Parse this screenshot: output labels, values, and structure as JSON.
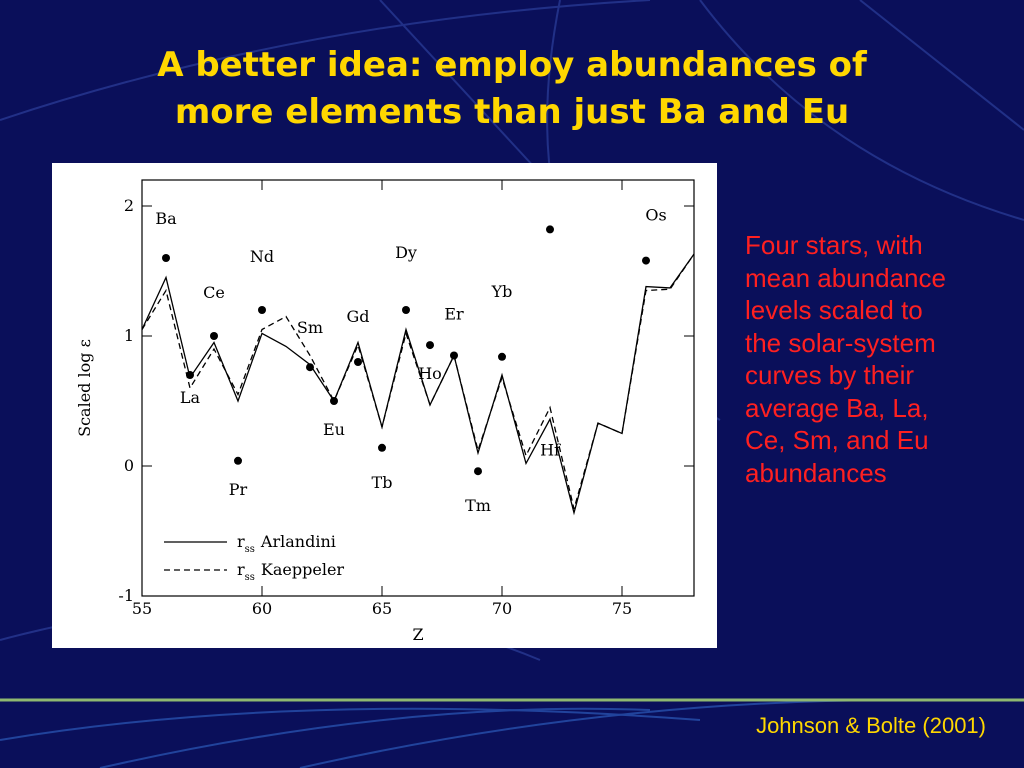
{
  "title": [
    "A better idea: employ abundances of",
    "more elements than just Ba and Eu"
  ],
  "body": [
    "Four stars, with",
    "mean abundance",
    "levels scaled to",
    "the solar-system",
    "curves by their",
    "average Ba, La,",
    "Ce, Sm, and Eu",
    "abundances"
  ],
  "footer": "Johnson & Bolte (2001)",
  "chart_data": {
    "type": "line",
    "x_label": "Z",
    "y_label": "Scaled log ε",
    "xlim": [
      55,
      78
    ],
    "ylim": [
      -1,
      2.2
    ],
    "xticks": [
      55,
      60,
      65,
      70,
      75
    ],
    "yticks": [
      -1,
      0,
      1,
      2
    ],
    "legend_prefix": "r",
    "legend_subscript": "ss",
    "x": [
      55,
      56,
      57,
      58,
      59,
      60,
      61,
      62,
      63,
      64,
      65,
      66,
      67,
      68,
      69,
      70,
      71,
      72,
      73,
      74,
      75,
      76,
      77,
      78
    ],
    "series": [
      {
        "name": "Arlandini",
        "color": "#000000",
        "dash": false,
        "values": [
          1.05,
          1.45,
          0.68,
          0.95,
          0.5,
          1.02,
          0.92,
          0.78,
          0.5,
          0.95,
          0.3,
          1.05,
          0.47,
          0.85,
          0.1,
          0.7,
          0.02,
          0.36,
          -0.36,
          0.33,
          0.25,
          1.38,
          1.37,
          1.63
        ]
      },
      {
        "name": "Kaeppeler",
        "color": "#000000",
        "dash": true,
        "values": [
          1.05,
          1.35,
          0.6,
          0.9,
          0.55,
          1.05,
          1.15,
          0.85,
          0.5,
          0.93,
          0.3,
          1.02,
          0.47,
          0.85,
          0.12,
          0.68,
          0.08,
          0.45,
          -0.33,
          0.33,
          0.25,
          1.35,
          1.36,
          1.63
        ]
      }
    ],
    "stars_mean": {
      "x": [
        56,
        57,
        58,
        59,
        60,
        62,
        63,
        64,
        65,
        66,
        67,
        68,
        69,
        70,
        72,
        76
      ],
      "labels": [
        "Ba",
        "La",
        "Ce",
        "Pr",
        "Nd",
        "Sm",
        "Eu",
        "Gd",
        "Tb",
        "Dy",
        "Ho",
        "Er",
        "Tm",
        "Yb",
        "Hf",
        "Os"
      ],
      "values": [
        1.6,
        0.7,
        1.0,
        0.04,
        1.2,
        0.76,
        0.5,
        0.8,
        0.14,
        1.2,
        0.93,
        0.85,
        -0.04,
        0.84,
        1.82,
        1.58
      ]
    }
  }
}
